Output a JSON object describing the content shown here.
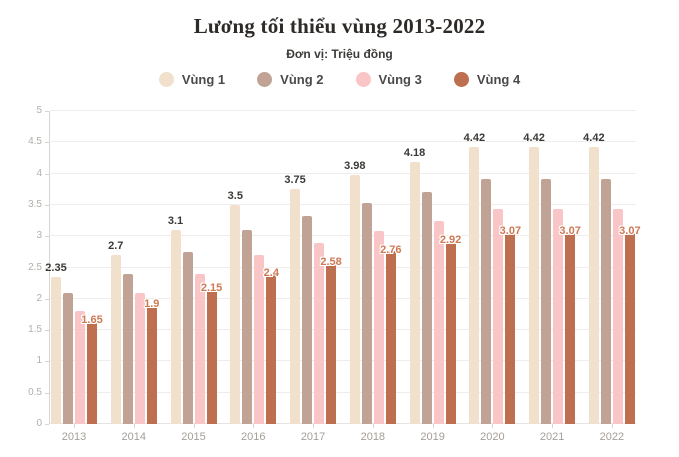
{
  "header": {
    "title": "Lương tối thiểu vùng 2013-2022",
    "subtitle": "Đơn vị: Triệu đồng"
  },
  "legend": {
    "items": [
      {
        "label": "Vùng 1",
        "color": "#f1e0cb"
      },
      {
        "label": "Vùng 2",
        "color": "#c0a394"
      },
      {
        "label": "Vùng 3",
        "color": "#f9c5c6"
      },
      {
        "label": "Vùng 4",
        "color": "#bd6f4f"
      }
    ]
  },
  "axis": {
    "y_ticks": [
      "0",
      "0.5",
      "1",
      "1.5",
      "2",
      "2.5",
      "3",
      "3.5",
      "4",
      "4.5",
      "5"
    ],
    "x_ticks": [
      "2013",
      "2014",
      "2015",
      "2016",
      "2017",
      "2018",
      "2019",
      "2020",
      "2021",
      "2022"
    ]
  },
  "chart_data": {
    "type": "bar",
    "title": "Lương tối thiểu vùng 2013-2022",
    "subtitle": "Đơn vị: Triệu đồng",
    "unit": "Triệu đồng",
    "categories": [
      "2013",
      "2014",
      "2015",
      "2016",
      "2017",
      "2018",
      "2019",
      "2020",
      "2021",
      "2022"
    ],
    "series": [
      {
        "name": "Vùng 1",
        "color": "#f1e0cb",
        "values": [
          2.35,
          2.7,
          3.1,
          3.5,
          3.75,
          3.98,
          4.18,
          4.42,
          4.42,
          4.42
        ],
        "value_labels": "above"
      },
      {
        "name": "Vùng 2",
        "color": "#c0a394",
        "values": [
          2.1,
          2.4,
          2.75,
          3.1,
          3.32,
          3.53,
          3.71,
          3.92,
          3.92,
          3.92
        ],
        "value_labels": "none"
      },
      {
        "name": "Vùng 3",
        "color": "#f9c5c6",
        "values": [
          1.8,
          2.1,
          2.4,
          2.7,
          2.9,
          3.09,
          3.25,
          3.43,
          3.43,
          3.43
        ],
        "value_labels": "none"
      },
      {
        "name": "Vùng 4",
        "color": "#bd6f4f",
        "values": [
          1.65,
          1.9,
          2.15,
          2.4,
          2.58,
          2.76,
          2.92,
          3.07,
          3.07,
          3.07
        ],
        "value_labels": "on-bar"
      }
    ],
    "ylim": [
      0,
      5
    ],
    "ytick_step": 0.5,
    "grid": true,
    "legend_position": "top"
  }
}
